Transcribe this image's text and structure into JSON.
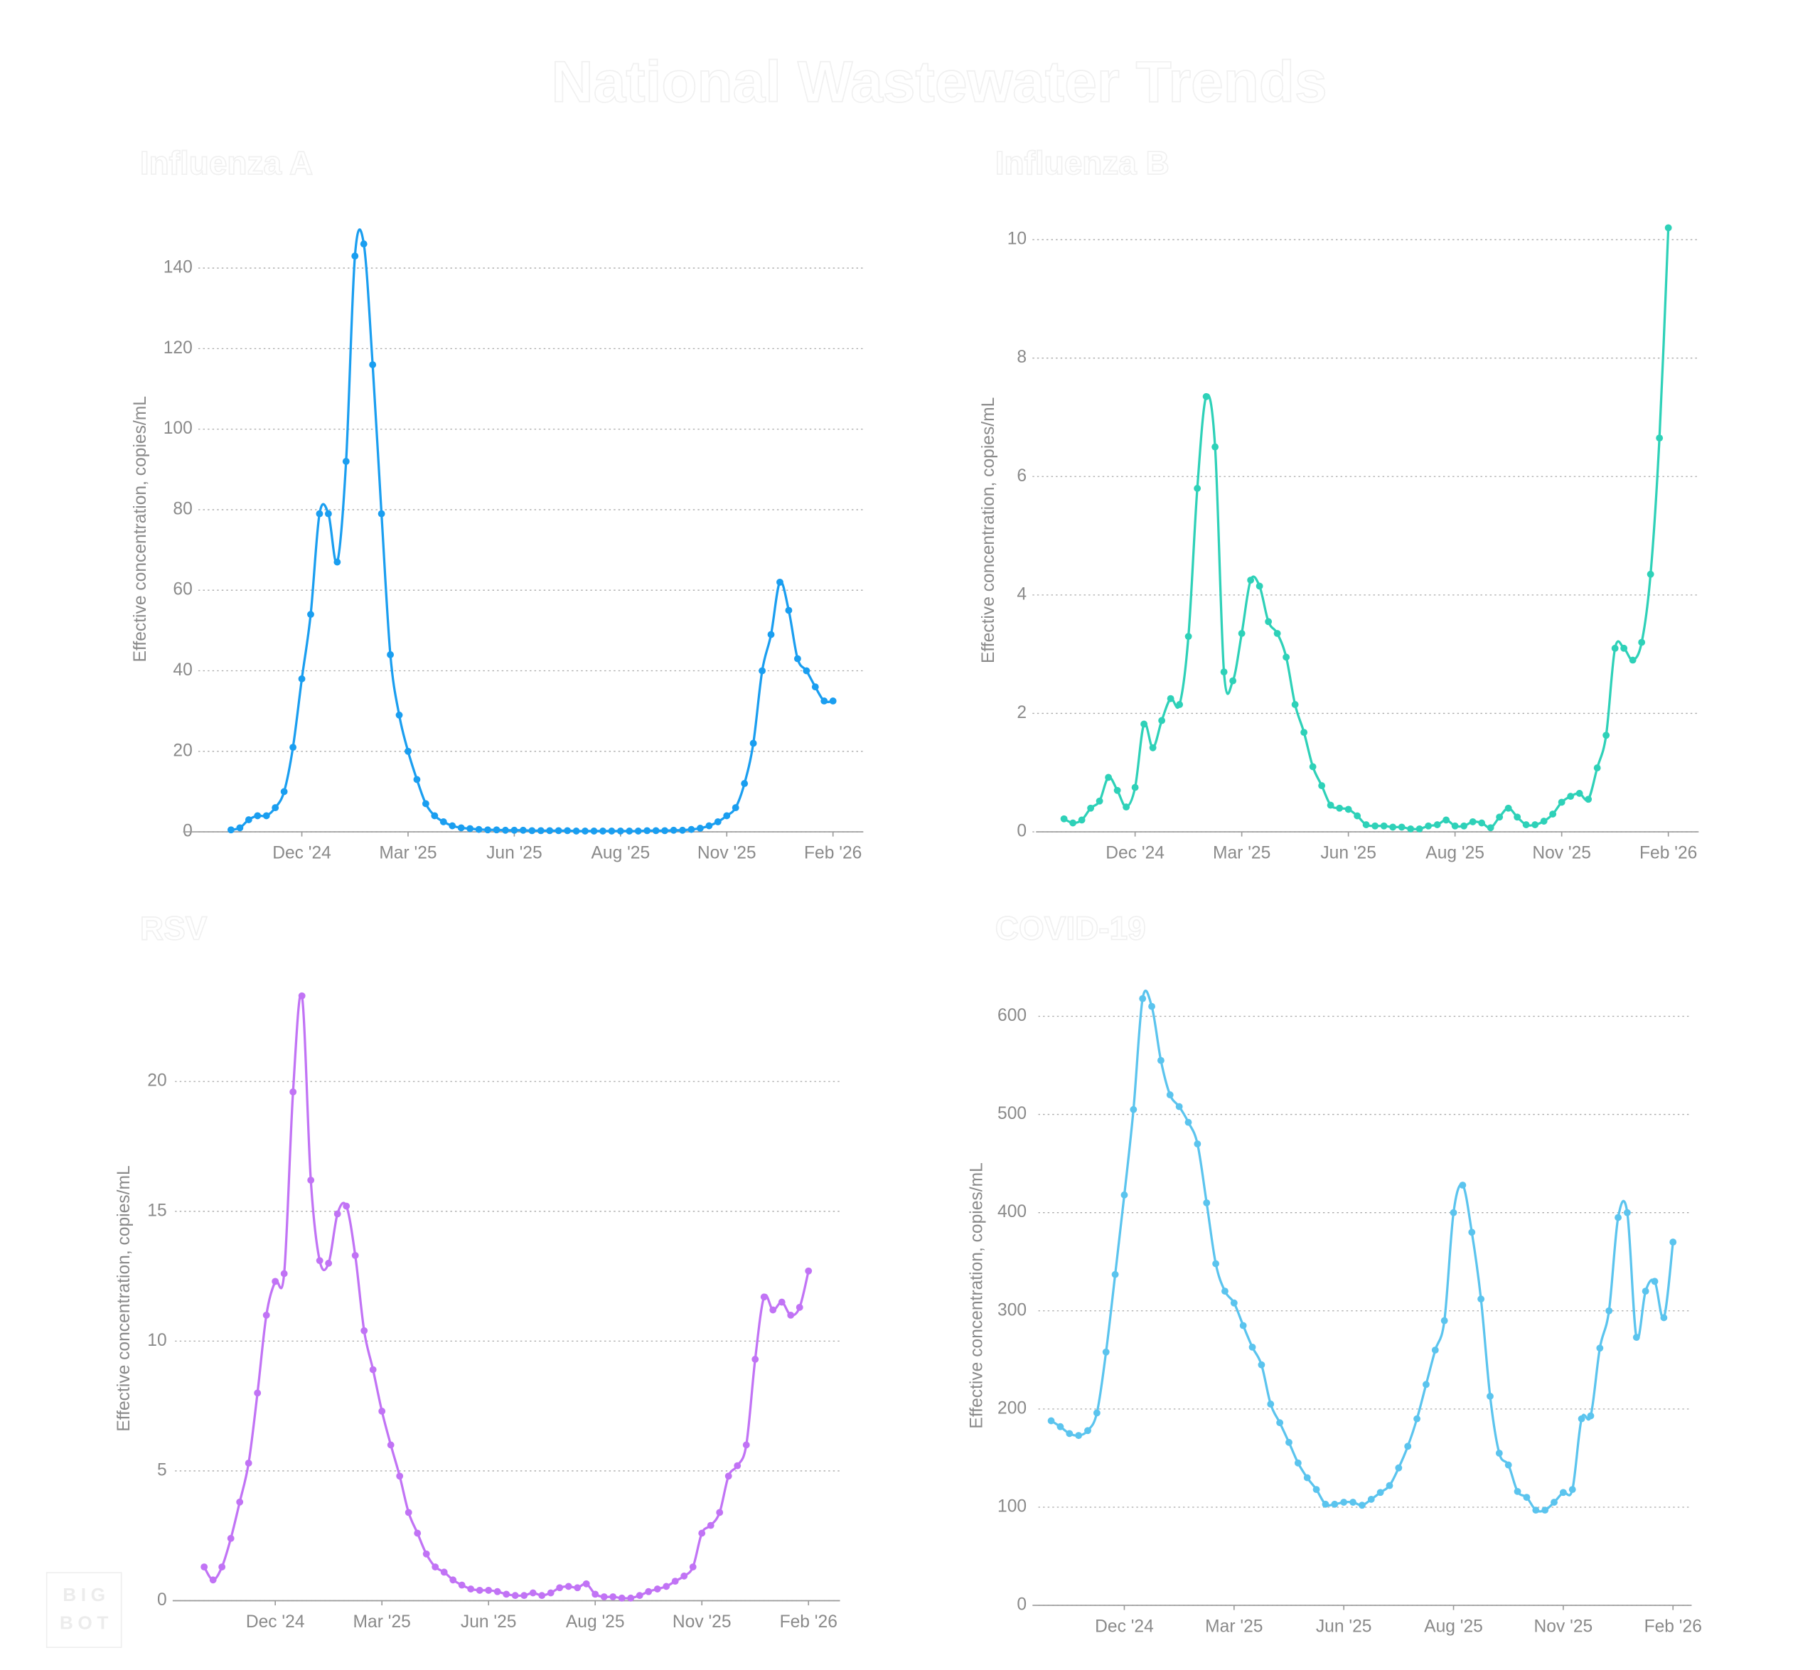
{
  "title": "National Wastewater Trends",
  "watermark": [
    "BIG",
    "BOT"
  ],
  "chart_data": [
    {
      "type": "line",
      "title": "Influenza A",
      "y_label": "Effective concentration, copies/mL",
      "categories": [
        null,
        null,
        null,
        null,
        null,
        null,
        null,
        null,
        "Dec '24",
        null,
        null,
        null,
        null,
        null,
        null,
        null,
        null,
        null,
        null,
        null,
        "Mar '25",
        null,
        null,
        null,
        null,
        null,
        null,
        null,
        null,
        null,
        null,
        null,
        "Jun '25",
        null,
        null,
        null,
        null,
        null,
        null,
        null,
        null,
        null,
        null,
        null,
        "Aug '25",
        null,
        null,
        null,
        null,
        null,
        null,
        null,
        null,
        null,
        null,
        null,
        "Nov '25",
        null,
        null,
        null,
        null,
        null,
        null,
        null,
        null,
        null,
        null,
        null,
        "Feb '26"
      ],
      "values": [
        0.5,
        1,
        3,
        4,
        4,
        6,
        10,
        21,
        38,
        54,
        79,
        79,
        67,
        92,
        143,
        146,
        116,
        79,
        44,
        29,
        20,
        13,
        7,
        4,
        2.5,
        1.5,
        1,
        0.8,
        0.6,
        0.5,
        0.5,
        0.4,
        0.4,
        0.4,
        0.3,
        0.3,
        0.3,
        0.3,
        0.3,
        0.2,
        0.2,
        0.2,
        0.2,
        0.2,
        0.2,
        0.2,
        0.2,
        0.3,
        0.3,
        0.3,
        0.4,
        0.4,
        0.6,
        0.9,
        1.5,
        2.5,
        4,
        6,
        12,
        22,
        40,
        49,
        62,
        55,
        43,
        40,
        36,
        32.5,
        32.5
      ],
      "color": "#1a9ef0",
      "ylim": [
        0,
        155
      ],
      "yticks": [
        0,
        20,
        40,
        60,
        80,
        100,
        120,
        140
      ],
      "grid": true
    },
    {
      "type": "line",
      "title": "Influenza B",
      "y_label": "Effective concentration, copies/mL",
      "categories": [
        null,
        null,
        null,
        null,
        null,
        null,
        null,
        null,
        "Dec '24",
        null,
        null,
        null,
        null,
        null,
        null,
        null,
        null,
        null,
        null,
        null,
        "Mar '25",
        null,
        null,
        null,
        null,
        null,
        null,
        null,
        null,
        null,
        null,
        null,
        "Jun '25",
        null,
        null,
        null,
        null,
        null,
        null,
        null,
        null,
        null,
        null,
        null,
        "Aug '25",
        null,
        null,
        null,
        null,
        null,
        null,
        null,
        null,
        null,
        null,
        null,
        "Nov '25",
        null,
        null,
        null,
        null,
        null,
        null,
        null,
        null,
        null,
        null,
        null,
        "Feb '26"
      ],
      "values": [
        0.22,
        0.15,
        0.2,
        0.4,
        0.52,
        0.92,
        0.7,
        0.42,
        0.75,
        1.82,
        1.42,
        1.88,
        2.25,
        2.15,
        3.3,
        5.8,
        7.35,
        6.5,
        2.7,
        2.55,
        3.35,
        4.25,
        4.15,
        3.55,
        3.35,
        2.95,
        2.15,
        1.68,
        1.1,
        0.78,
        0.45,
        0.4,
        0.38,
        0.27,
        0.12,
        0.1,
        0.1,
        0.08,
        0.08,
        0.05,
        0.05,
        0.1,
        0.12,
        0.2,
        0.1,
        0.1,
        0.17,
        0.15,
        0.07,
        0.25,
        0.4,
        0.25,
        0.12,
        0.12,
        0.18,
        0.3,
        0.5,
        0.6,
        0.65,
        0.55,
        1.08,
        1.63,
        3.1,
        3.1,
        2.9,
        3.2,
        4.35,
        6.65,
        10.2
      ],
      "color": "#2ed1b8",
      "ylim": [
        0,
        10.5
      ],
      "yticks": [
        0,
        2,
        4,
        6,
        8,
        10
      ],
      "grid": true
    },
    {
      "type": "line",
      "title": "RSV",
      "y_label": "Effective concentration, copies/mL",
      "categories": [
        null,
        null,
        null,
        null,
        null,
        null,
        null,
        null,
        "Dec '24",
        null,
        null,
        null,
        null,
        null,
        null,
        null,
        null,
        null,
        null,
        null,
        "Mar '25",
        null,
        null,
        null,
        null,
        null,
        null,
        null,
        null,
        null,
        null,
        null,
        "Jun '25",
        null,
        null,
        null,
        null,
        null,
        null,
        null,
        null,
        null,
        null,
        null,
        "Aug '25",
        null,
        null,
        null,
        null,
        null,
        null,
        null,
        null,
        null,
        null,
        null,
        "Nov '25",
        null,
        null,
        null,
        null,
        null,
        null,
        null,
        null,
        null,
        null,
        null,
        "Feb '26"
      ],
      "values": [
        1.3,
        0.8,
        1.3,
        2.4,
        3.8,
        5.3,
        8,
        11,
        12.3,
        12.6,
        19.6,
        23.3,
        16.2,
        13.1,
        13,
        14.9,
        15.2,
        13.3,
        10.4,
        8.9,
        7.3,
        6,
        4.8,
        3.4,
        2.6,
        1.8,
        1.3,
        1.1,
        0.8,
        0.6,
        0.45,
        0.4,
        0.4,
        0.35,
        0.25,
        0.2,
        0.2,
        0.3,
        0.2,
        0.3,
        0.5,
        0.55,
        0.5,
        0.65,
        0.25,
        0.15,
        0.15,
        0.1,
        0.1,
        0.2,
        0.35,
        0.45,
        0.55,
        0.75,
        0.95,
        1.3,
        2.6,
        2.9,
        3.4,
        4.8,
        5.2,
        6,
        9.3,
        11.7,
        11.2,
        11.5,
        11,
        11.3,
        12.7
      ],
      "color": "#c173f5",
      "ylim": [
        0,
        24
      ],
      "yticks": [
        0,
        5,
        10,
        15,
        20
      ],
      "grid": true
    },
    {
      "type": "line",
      "title": "COVID-19",
      "y_label": "Effective concentration, copies/mL",
      "categories": [
        null,
        null,
        null,
        null,
        null,
        null,
        null,
        null,
        "Dec '24",
        null,
        null,
        null,
        null,
        null,
        null,
        null,
        null,
        null,
        null,
        null,
        "Mar '25",
        null,
        null,
        null,
        null,
        null,
        null,
        null,
        null,
        null,
        null,
        null,
        "Jun '25",
        null,
        null,
        null,
        null,
        null,
        null,
        null,
        null,
        null,
        null,
        null,
        "Aug '25",
        null,
        null,
        null,
        null,
        null,
        null,
        null,
        null,
        null,
        null,
        null,
        "Nov '25",
        null,
        null,
        null,
        null,
        null,
        null,
        null,
        null,
        null,
        null,
        null,
        "Feb '26"
      ],
      "values": [
        188,
        182,
        175,
        173,
        178,
        196,
        258,
        337,
        418,
        505,
        618,
        610,
        555,
        520,
        508,
        492,
        470,
        410,
        348,
        320,
        308,
        285,
        263,
        245,
        205,
        186,
        166,
        145,
        130,
        118,
        103,
        103,
        105,
        105,
        102,
        108,
        115,
        122,
        140,
        162,
        190,
        225,
        260,
        290,
        400,
        428,
        380,
        312,
        213,
        155,
        143,
        116,
        110,
        97,
        97,
        105,
        115,
        118,
        190,
        193,
        262,
        300,
        395,
        400,
        273,
        320,
        330,
        293,
        370
      ],
      "color": "#5bc4ee",
      "ylim": [
        0,
        650
      ],
      "yticks": [
        0,
        100,
        200,
        300,
        400,
        500,
        600
      ],
      "grid": true
    }
  ]
}
